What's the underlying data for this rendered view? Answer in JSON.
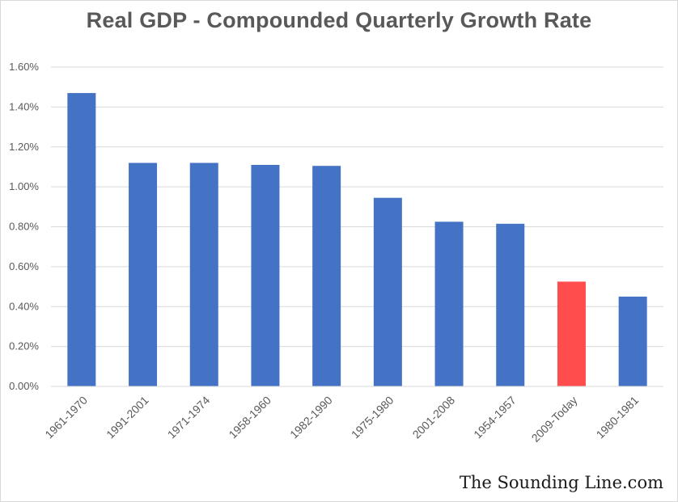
{
  "colors": {
    "bar": "#4472c4",
    "highlight": "#ff4d4d",
    "grid": "#d9d9d9",
    "text": "#595959"
  },
  "watermark": "The Sounding Line.com",
  "chart_data": {
    "type": "bar",
    "title": "Real GDP - Compounded Quarterly Growth Rate",
    "xlabel": "",
    "ylabel": "",
    "categories": [
      "1961-1970",
      "1991-2001",
      "1971-1974",
      "1958-1960",
      "1982-1990",
      "1975-1980",
      "2001-2008",
      "1954-1957",
      "2009-Today",
      "1980-1981"
    ],
    "values": [
      1.47,
      1.12,
      1.12,
      1.11,
      1.105,
      0.945,
      0.825,
      0.815,
      0.525,
      0.45
    ],
    "highlight_category": "2009-Today",
    "ylim": [
      0,
      1.6
    ],
    "yticks": [
      "0.00%",
      "0.20%",
      "0.40%",
      "0.60%",
      "0.80%",
      "1.00%",
      "1.20%",
      "1.40%",
      "1.60%"
    ],
    "grid": true,
    "legend": "none"
  }
}
